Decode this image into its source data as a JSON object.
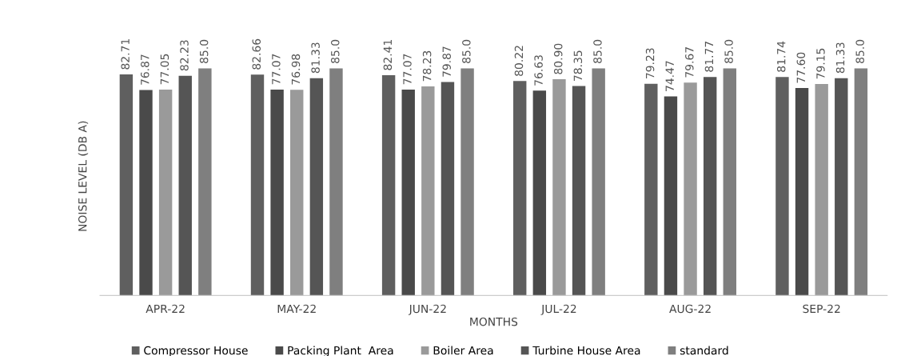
{
  "chart_data": {
    "type": "bar",
    "xlabel": "MONTHS",
    "ylabel": "NOISE LEVEL (DB A)",
    "categories": [
      "APR-22",
      "MAY-22",
      "JUN-22",
      "JUL-22",
      "AUG-22",
      "SEP-22"
    ],
    "tick_labels": "x",
    "grid": false,
    "legend": "bottom",
    "series": [
      {
        "name": "Compressor House",
        "color": "#5f5f5f",
        "values": [
          82.71,
          82.66,
          82.41,
          80.22,
          79.23,
          81.74
        ],
        "value_labels": [
          "82.71",
          "82.66",
          "82.41",
          "80.22",
          "79.23",
          "81.74"
        ]
      },
      {
        "name": "Packing Plant  Area",
        "color": "#4a4a4a",
        "values": [
          76.87,
          77.07,
          77.07,
          76.63,
          74.47,
          77.6
        ],
        "value_labels": [
          "76.87",
          "77.07",
          "77.07",
          "76.63",
          "74.47",
          "77.60"
        ]
      },
      {
        "name": "Boiler Area",
        "color": "#9a9a9a",
        "values": [
          77.05,
          76.98,
          78.23,
          80.9,
          79.67,
          79.15
        ],
        "value_labels": [
          "77.05",
          "76.98",
          "78.23",
          "80.90",
          "79.67",
          "79.15"
        ]
      },
      {
        "name": "Turbine House Area",
        "color": "#555555",
        "values": [
          82.23,
          81.33,
          79.87,
          78.35,
          81.77,
          81.33
        ],
        "value_labels": [
          "82.23",
          "81.33",
          "79.87",
          "78.35",
          "81.77",
          "81.33"
        ]
      },
      {
        "name": "standard",
        "color": "#7f7f7f",
        "values": [
          85.0,
          85.0,
          85.0,
          85.0,
          85.0,
          85.0
        ],
        "value_labels": [
          "85.0",
          "85.0",
          "85.0",
          "85.0",
          "85.0",
          "85.0"
        ]
      }
    ]
  }
}
